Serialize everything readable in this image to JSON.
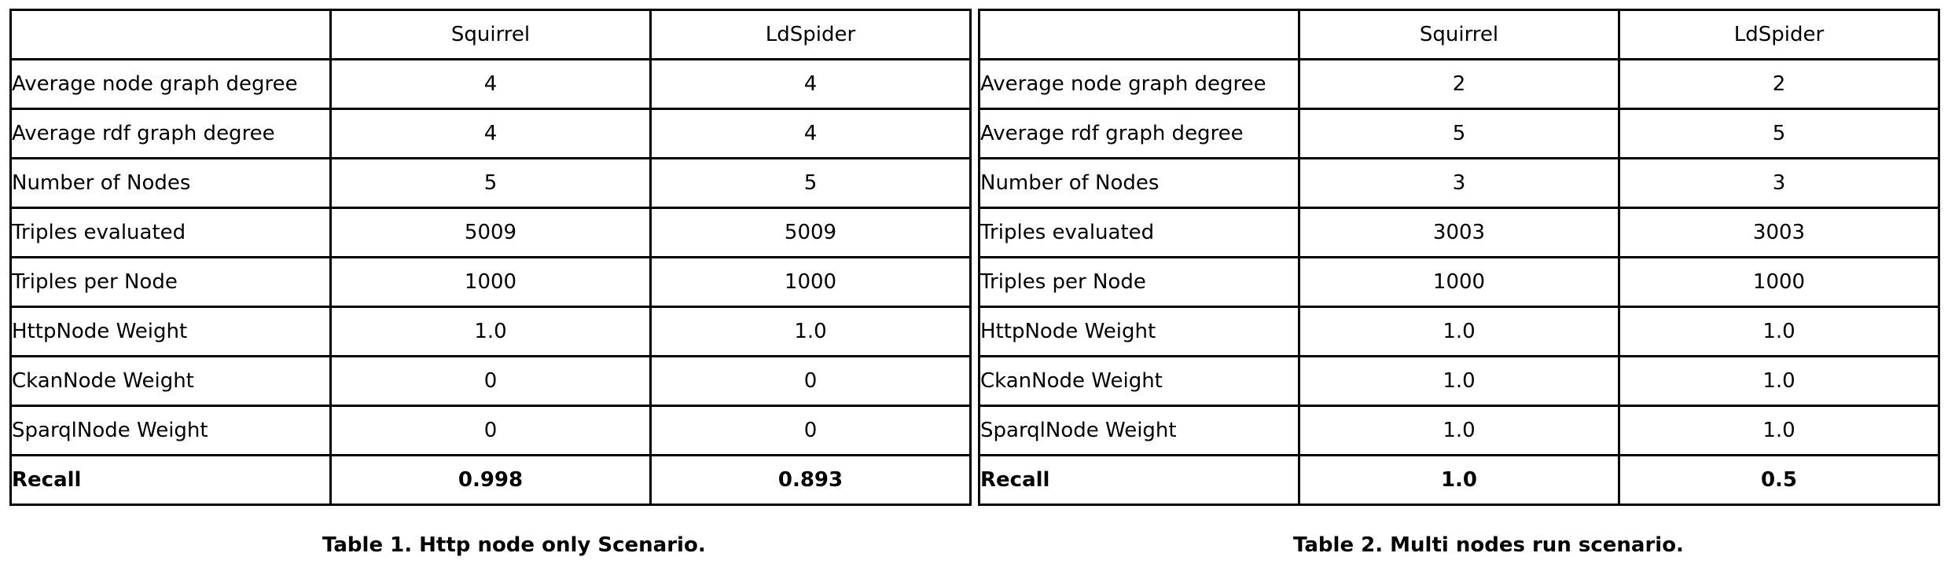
{
  "table1": {
    "headers": [
      "",
      "Squirrel",
      "LdSpider"
    ],
    "rows": [
      [
        "Average node graph degree",
        "4",
        "4"
      ],
      [
        "Average rdf graph degree",
        "4",
        "4"
      ],
      [
        "Number of Nodes",
        "5",
        "5"
      ],
      [
        "Triples evaluated",
        "5009",
        "5009"
      ],
      [
        "Triples per Node",
        "1000",
        "1000"
      ],
      [
        "HttpNode Weight",
        "1.0",
        "1.0"
      ],
      [
        "CkanNode Weight",
        "0",
        "0"
      ],
      [
        "SparqlNode Weight",
        "0",
        "0"
      ],
      [
        "Recall",
        "0.998",
        "0.893"
      ]
    ],
    "caption": "Table 1. Http node only Scenario."
  },
  "table2": {
    "headers": [
      "",
      "Squirrel",
      "LdSpider"
    ],
    "rows": [
      [
        "Average node graph degree",
        "2",
        "2"
      ],
      [
        "Average rdf graph degree",
        "5",
        "5"
      ],
      [
        "Number of Nodes",
        "3",
        "3"
      ],
      [
        "Triples evaluated",
        "3003",
        "3003"
      ],
      [
        "Triples per Node",
        "1000",
        "1000"
      ],
      [
        "HttpNode Weight",
        "1.0",
        "1.0"
      ],
      [
        "CkanNode Weight",
        "1.0",
        "1.0"
      ],
      [
        "SparqlNode Weight",
        "1.0",
        "1.0"
      ],
      [
        "Recall",
        "1.0",
        "0.5"
      ]
    ],
    "caption": "Table 2. Multi nodes run scenario."
  }
}
